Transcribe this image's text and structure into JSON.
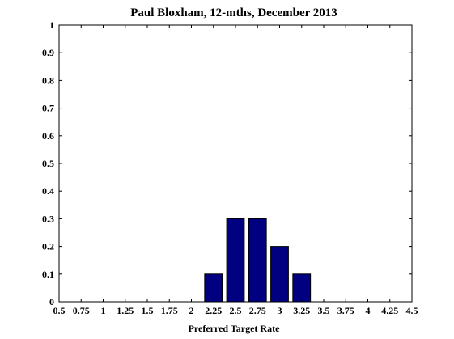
{
  "chart_data": {
    "type": "bar",
    "title": "Paul Bloxham, 12-mths, December 2013",
    "xlabel": "Preferred Target Rate",
    "ylabel": "",
    "xlim": [
      0.5,
      4.5
    ],
    "ylim": [
      0,
      1
    ],
    "x_ticks": [
      "0.5",
      "0.75",
      "1",
      "1.25",
      "1.5",
      "1.75",
      "2",
      "2.25",
      "2.5",
      "2.75",
      "3",
      "3.25",
      "3.5",
      "3.75",
      "4",
      "4.25",
      "4.5"
    ],
    "y_ticks": [
      "0",
      "0.1",
      "0.2",
      "0.3",
      "0.4",
      "0.5",
      "0.6",
      "0.7",
      "0.8",
      "0.9",
      "1"
    ],
    "categories": [
      2.25,
      2.5,
      2.75,
      3,
      3.25
    ],
    "values": [
      0.1,
      0.3,
      0.3,
      0.2,
      0.1
    ],
    "grid": false,
    "bar_color": "#000080",
    "bar_edge_color": "#000000"
  }
}
